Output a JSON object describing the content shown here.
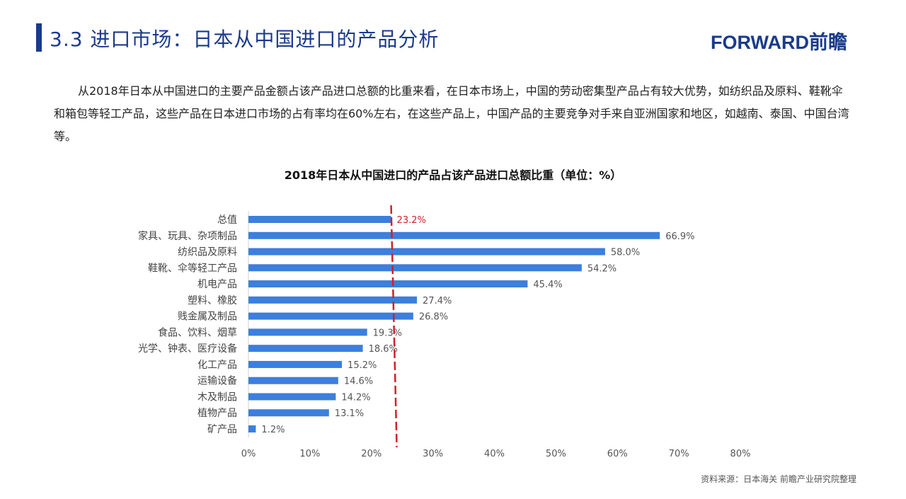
{
  "header": {
    "title": "3.3 进口市场：日本从中国进口的产品分析",
    "logo": "FORWARD前瞻"
  },
  "paragraph": "从2018年日本从中国进口的主要产品金额占该产品进口总额的比重来看，在日本市场上，中国的劳动密集型产品占有较大优势，如纺织品及原料、鞋靴伞和箱包等轻工产品，这些产品在日本进口市场的占有率均在60%左右，在这些产品上，中国产品的主要竞争对手来自亚洲国家和地区，如越南、泰国、中国台湾等。",
  "source": "资料来源：日本海关   前瞻产业研究院整理",
  "colors": {
    "bar": "#3c7fdc",
    "reference": "#d0202a",
    "title": "#1a3a8c"
  },
  "chart_data": {
    "type": "bar",
    "orientation": "horizontal",
    "title": "2018年日本从中国进口的产品占该产品进口总额比重（单位：%）",
    "categories": [
      "总值",
      "家具、玩具、杂项制品",
      "纺织品及原料",
      "鞋靴、伞等轻工产品",
      "机电产品",
      "塑料、橡胶",
      "贱金属及制品",
      "食品、饮料、烟草",
      "光学、钟表、医疗设备",
      "化工产品",
      "运输设备",
      "木及制品",
      "植物产品",
      "矿产品"
    ],
    "values": [
      23.2,
      66.9,
      58.0,
      54.2,
      45.4,
      27.4,
      26.8,
      19.3,
      18.6,
      15.2,
      14.6,
      14.2,
      13.1,
      1.2
    ],
    "value_labels": [
      "23.2%",
      "66.9%",
      "58.0%",
      "54.2%",
      "45.4%",
      "27.4%",
      "26.8%",
      "19.3%",
      "18.6%",
      "15.2%",
      "14.6%",
      "14.2%",
      "13.1%",
      "1.2%"
    ],
    "xticks": [
      "0%",
      "10%",
      "20%",
      "30%",
      "40%",
      "50%",
      "60%",
      "70%",
      "80%"
    ],
    "xlim": [
      0,
      80
    ],
    "reference_line": 23.2,
    "grid": false
  }
}
